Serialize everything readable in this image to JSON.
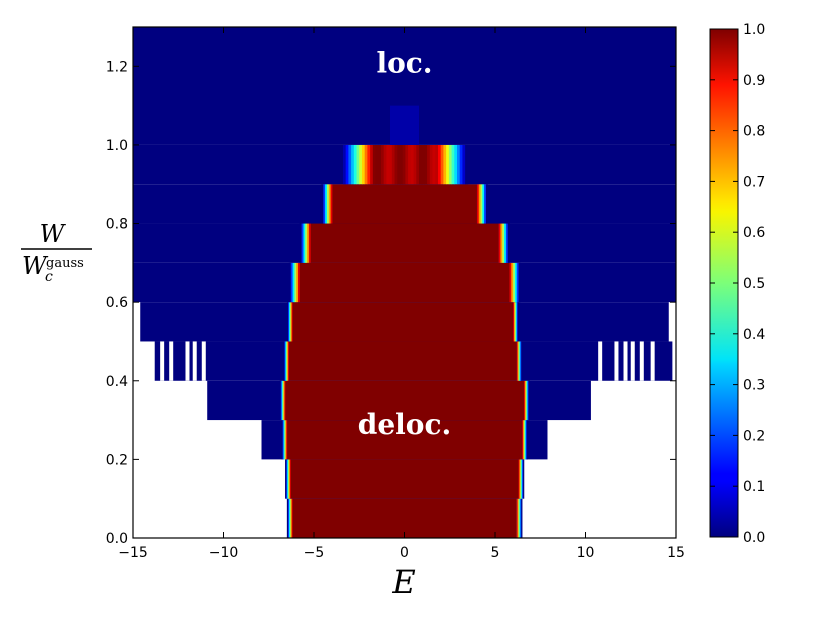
{
  "chart_data": {
    "type": "heatmap",
    "title": "",
    "xlabel": "E",
    "ylabel_num": "W",
    "ylabel_den_base": "W",
    "ylabel_den_sub": "c",
    "ylabel_den_sup": "gauss",
    "xlim": [
      -15,
      15
    ],
    "ylim": [
      0,
      1.3
    ],
    "x_ticks": [
      -15,
      -10,
      -5,
      0,
      5,
      10,
      15
    ],
    "x_tick_labels": [
      "−15",
      "−10",
      "−5",
      "0",
      "5",
      "10",
      "15"
    ],
    "y_ticks": [
      0.0,
      0.2,
      0.4,
      0.6,
      0.8,
      1.0,
      1.2
    ],
    "y_tick_labels": [
      "0.0",
      "0.2",
      "0.4",
      "0.6",
      "0.8",
      "1.0",
      "1.2"
    ],
    "colorbar": {
      "range": [
        0,
        1
      ],
      "ticks": [
        0,
        0.1,
        0.2,
        0.3,
        0.4,
        0.5,
        0.6,
        0.7,
        0.8,
        0.9,
        1.0
      ],
      "tick_labels": [
        "0.0",
        "0.1",
        "0.2",
        "0.3",
        "0.4",
        "0.5",
        "0.6",
        "0.7",
        "0.8",
        "0.9",
        "1.0"
      ],
      "colormap": "jet"
    },
    "annotations": [
      {
        "text": "loc.",
        "x": 0,
        "y": 1.21
      },
      {
        "text": "deloc.",
        "x": 0,
        "y": 0.29
      }
    ],
    "rows": [
      {
        "w0": 0.0,
        "w1": 0.1,
        "data_extent": [
          -6.2,
          6.2
        ],
        "core": [
          -6.2,
          6.2
        ],
        "blue_extent": [
          -6.2,
          6.2
        ]
      },
      {
        "w0": 0.1,
        "w1": 0.2,
        "data_extent": [
          -6.5,
          6.5
        ],
        "core": [
          -6.3,
          6.3
        ],
        "blue_extent": [
          -6.5,
          6.5
        ]
      },
      {
        "w0": 0.2,
        "w1": 0.3,
        "data_extent": [
          -7.9,
          7.9
        ],
        "core": [
          -6.5,
          6.5
        ],
        "blue_extent": [
          -7.9,
          7.9
        ]
      },
      {
        "w0": 0.3,
        "w1": 0.4,
        "data_extent": [
          -10.9,
          10.3
        ],
        "core": [
          -6.6,
          6.6
        ],
        "blue_extent": [
          -10.9,
          10.3
        ]
      },
      {
        "w0": 0.4,
        "w1": 0.5,
        "data_extent": [
          -13.8,
          14.8
        ],
        "core": [
          -6.4,
          6.2
        ],
        "blue_extent": [
          -13.8,
          14.8
        ]
      },
      {
        "w0": 0.5,
        "w1": 0.6,
        "data_extent": [
          -14.6,
          14.6
        ],
        "core": [
          -6.2,
          6.0
        ],
        "blue_extent": [
          -14.6,
          14.6
        ]
      },
      {
        "w0": 0.6,
        "w1": 0.7,
        "data_extent": [
          -15,
          15
        ],
        "core": [
          -5.8,
          5.8
        ],
        "blue_extent": [
          -15,
          15
        ]
      },
      {
        "w0": 0.7,
        "w1": 0.8,
        "data_extent": [
          -15,
          15
        ],
        "core": [
          -5.2,
          5.2
        ],
        "blue_extent": [
          -15,
          15
        ]
      },
      {
        "w0": 0.8,
        "w1": 0.9,
        "data_extent": [
          -15,
          15
        ],
        "core": [
          -4.0,
          4.0
        ],
        "blue_extent": [
          -15,
          15
        ]
      },
      {
        "w0": 0.9,
        "w1": 1.0,
        "data_extent": [
          -15,
          15
        ],
        "core": [
          -3.0,
          3.0
        ],
        "blue_extent": [
          -15,
          15
        ]
      },
      {
        "w0": 1.0,
        "w1": 1.3,
        "data_extent": [
          -15,
          15
        ],
        "core": [
          0,
          0
        ],
        "blue_extent": [
          -15,
          15
        ]
      }
    ]
  }
}
